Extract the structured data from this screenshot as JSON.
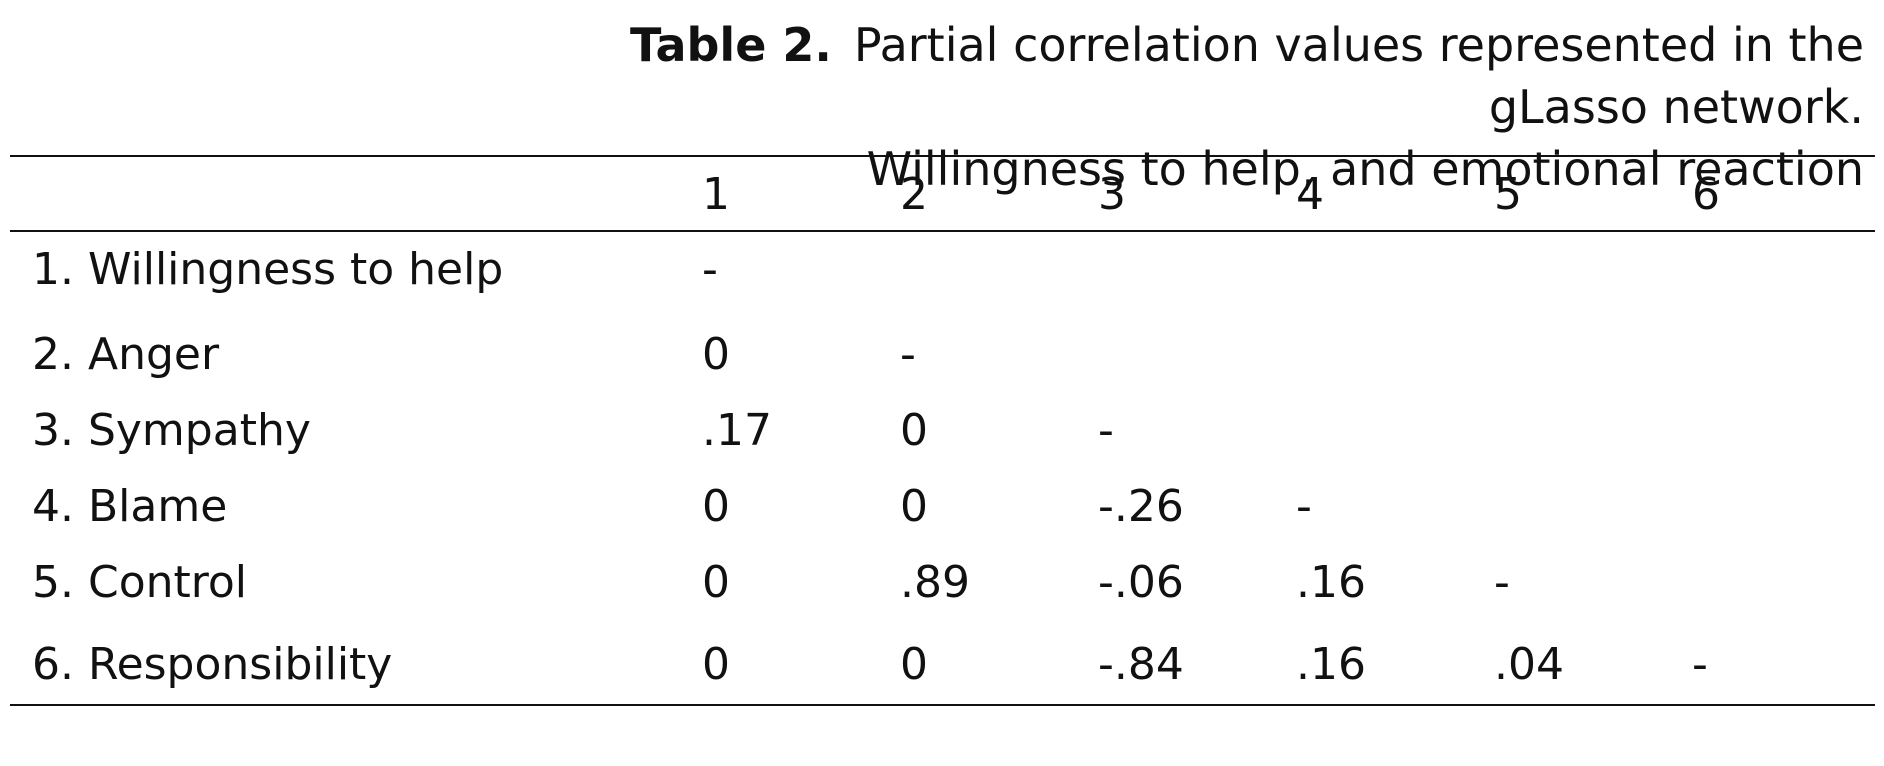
{
  "table": {
    "caption_label": "Table 2.",
    "caption_line1": "Partial correlation values represented in the gLasso network.",
    "caption_line2": "Willingness to help, and emotional reaction",
    "columns": [
      "1",
      "2",
      "3",
      "4",
      "5",
      "6"
    ],
    "rows": [
      {
        "label": "1. Willingness to help",
        "cells": [
          "-",
          "",
          "",
          "",
          "",
          ""
        ]
      },
      {
        "label": "2. Anger",
        "cells": [
          "0",
          "-",
          "",
          "",
          "",
          ""
        ]
      },
      {
        "label": "3. Sympathy",
        "cells": [
          ".17",
          "0",
          "-",
          "",
          "",
          ""
        ]
      },
      {
        "label": "4. Blame",
        "cells": [
          "0",
          "0",
          "-.26",
          "-",
          "",
          ""
        ]
      },
      {
        "label": "5. Control",
        "cells": [
          "0",
          ".89",
          "-.06",
          ".16",
          "-",
          ""
        ]
      },
      {
        "label": "6. Responsibility",
        "cells": [
          "0",
          "0",
          "-.84",
          ".16",
          ".04",
          "-"
        ]
      }
    ]
  }
}
